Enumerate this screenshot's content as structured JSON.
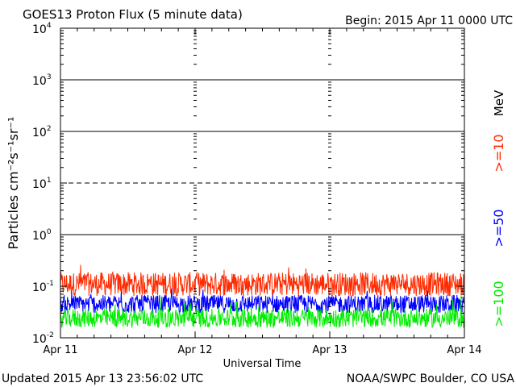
{
  "chart_data": {
    "type": "line",
    "title": "GOES13 Proton Flux (5 minute data)",
    "begin_label": "Begin: 2015 Apr 11 0000 UTC",
    "ylabel": "Particles cm⁻²s⁻¹sr⁻¹",
    "xlabel": "Universal Time",
    "y_scale": "log",
    "ylim": [
      0.01,
      10000
    ],
    "y_ticks": [
      {
        "base": "10",
        "exp": "-2"
      },
      {
        "base": "10",
        "exp": "-1"
      },
      {
        "base": "10",
        "exp": "0"
      },
      {
        "base": "10",
        "exp": "1"
      },
      {
        "base": "10",
        "exp": "2"
      },
      {
        "base": "10",
        "exp": "3"
      },
      {
        "base": "10",
        "exp": "4"
      }
    ],
    "x_range": [
      "2015-04-11",
      "2015-04-14"
    ],
    "x_ticks": [
      "Apr 11",
      "Apr 12",
      "Apr 13",
      "Apr 14"
    ],
    "threshold_lines": [
      1,
      10,
      100,
      1000
    ],
    "dashed_line": 10,
    "unit_label": "MeV",
    "series": [
      {
        "name": ">=10",
        "color": "#ff2a00",
        "typical": 0.11,
        "min": 0.06,
        "max": 0.42
      },
      {
        "name": ">=50",
        "color": "#0000ff",
        "typical": 0.045,
        "min": 0.025,
        "max": 0.11
      },
      {
        "name": ">=100",
        "color": "#00ee00",
        "typical": 0.024,
        "min": 0.015,
        "max": 0.07
      }
    ],
    "grid": false,
    "legend_placement": "right-vertical"
  },
  "footer": {
    "updated": "Updated 2015 Apr 13 23:56:02 UTC",
    "credit": "NOAA/SWPC Boulder, CO USA"
  }
}
